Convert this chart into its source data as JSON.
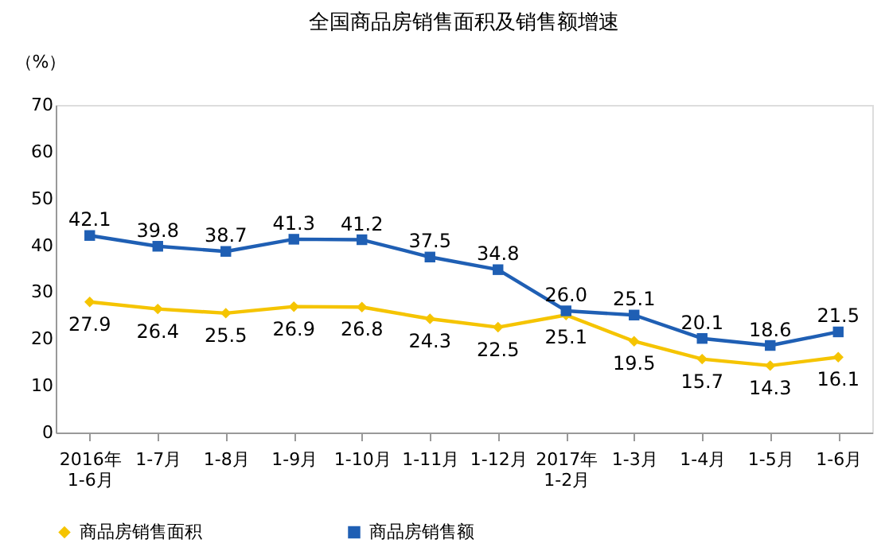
{
  "chart_data": {
    "type": "line",
    "title": "全国商品房销售面积及销售额增速",
    "ylabel": "（%）",
    "categories": [
      "2016年\n1-6月",
      "1-7月",
      "1-8月",
      "1-9月",
      "1-10月",
      "1-11月",
      "1-12月",
      "2017年\n1-2月",
      "1-3月",
      "1-4月",
      "1-5月",
      "1-6月"
    ],
    "series": [
      {
        "name": "商品房销售面积",
        "color": "#f5c400",
        "marker": "diamond",
        "value_labels": [
          "27.9",
          "26.4",
          "25.5",
          "26.9",
          "26.8",
          "24.3",
          "22.5",
          "25.1",
          "19.5",
          "15.7",
          "14.3",
          "16.1"
        ],
        "values": [
          27.9,
          26.4,
          25.5,
          26.9,
          26.8,
          24.3,
          22.5,
          25.1,
          19.5,
          15.7,
          14.3,
          16.1
        ]
      },
      {
        "name": "商品房销售额",
        "color": "#1f5fb4",
        "marker": "square",
        "value_labels": [
          "42.1",
          "39.8",
          "38.7",
          "41.3",
          "41.2",
          "37.5",
          "34.8",
          "26.0",
          "25.1",
          "20.1",
          "18.6",
          "21.5"
        ],
        "values": [
          42.1,
          39.8,
          38.7,
          41.3,
          41.2,
          37.5,
          34.8,
          26.0,
          25.1,
          20.1,
          18.6,
          21.5
        ]
      }
    ],
    "ylim": [
      0,
      70
    ],
    "yticks": [
      0,
      10,
      20,
      30,
      40,
      50,
      60,
      70
    ],
    "grid": false,
    "legend": "bottom"
  }
}
